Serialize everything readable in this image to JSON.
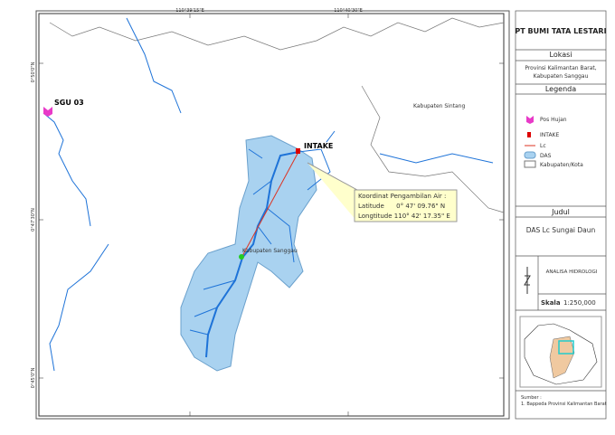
{
  "map": {
    "grid_labels": {
      "top": [
        "110°39'15\"E",
        "110°40'30\"E"
      ],
      "left": [
        "0°50'0\"N",
        "0°47'30\"N",
        "0°45'0\"N"
      ]
    },
    "labels": {
      "station": "SGU 03",
      "intake": "INTAKE",
      "sintang": "Kabupaten Sintang",
      "sanggau": "Kabupaten Sanggau"
    },
    "callout": [
      "Koordinat Pengambilan Air :",
      "Latitude      0° 47' 09.76\" N",
      "Longtitude 110° 42' 17.35\" E"
    ]
  },
  "sidebar": {
    "company": "PT BUMI TATA LESTARI",
    "location_heading": "Lokasi",
    "location": [
      "Provinsi Kalimantan Barat,",
      "Kabupaten Sanggau"
    ],
    "legend_heading": "Legenda",
    "legend": [
      "Pos Hujan",
      "INTAKE",
      "Lc",
      "DAS",
      "Kabupaten/Kota"
    ],
    "title_heading": "Judul",
    "title": "DAS Lc Sungai Daun",
    "subtitle": "ANALISA HIDROLOGI",
    "scale_label": "Skala",
    "scale": "1:250,000",
    "source": [
      "Sumber :",
      "1. Bappeda Provinsi Kalimantan Barat"
    ]
  }
}
